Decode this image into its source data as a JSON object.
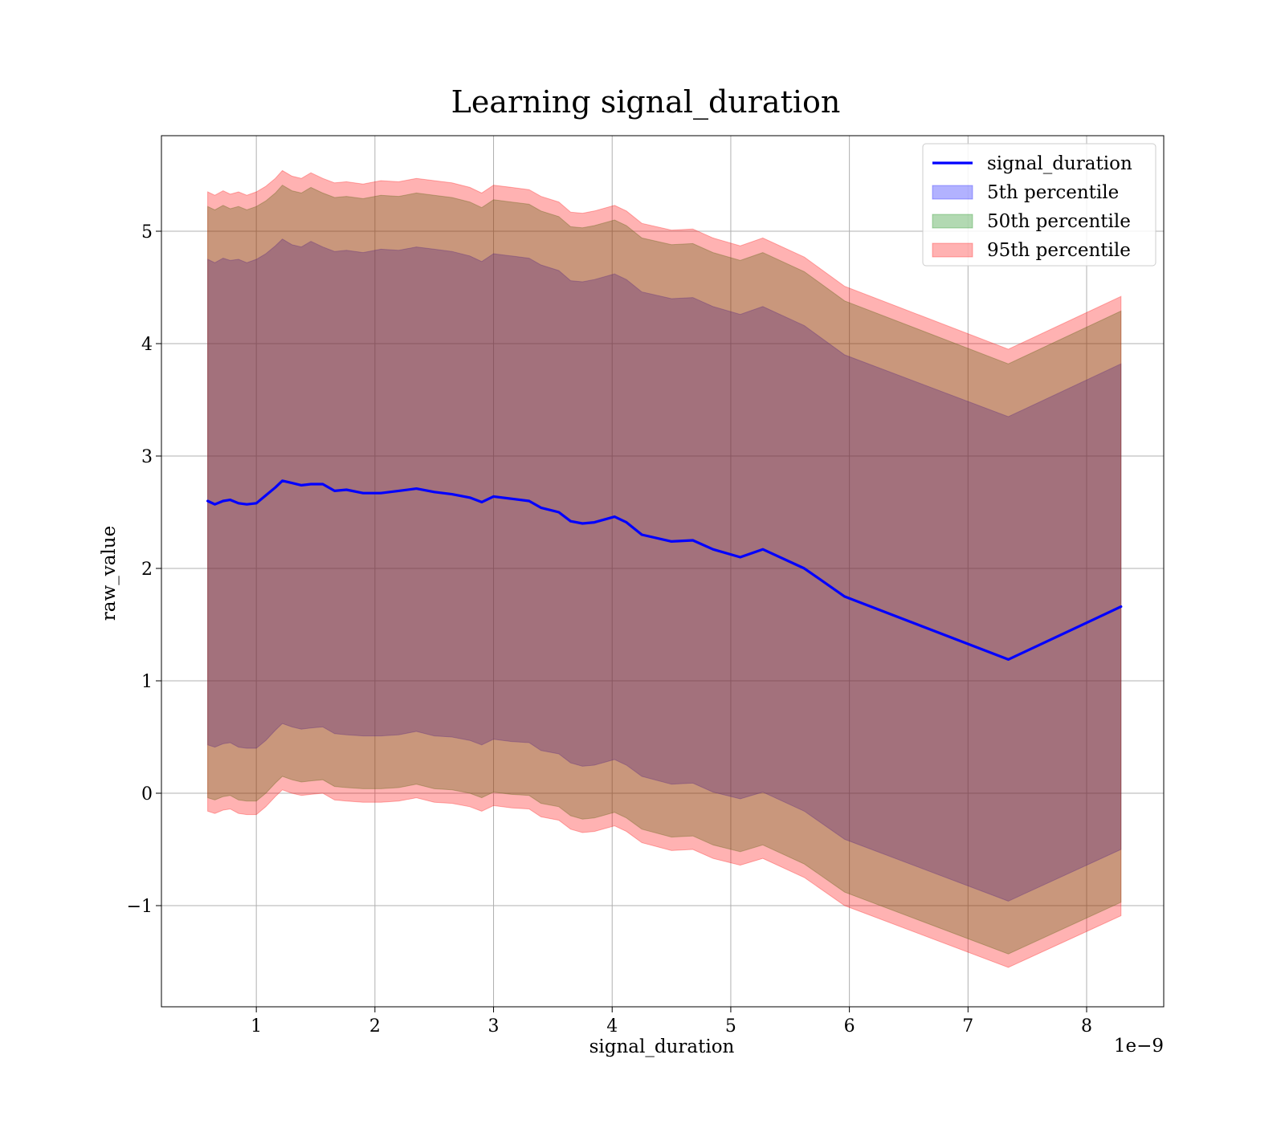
{
  "chart_data": {
    "type": "area",
    "title": "Learning signal_duration",
    "xlabel": "signal_duration",
    "ylabel": "raw_value",
    "x_offset_text": "1e−9",
    "x_scale_note": "x values in units of 1e-9",
    "xlim": [
      0.2,
      8.65
    ],
    "ylim": [
      -1.9,
      5.85
    ],
    "x_ticks": [
      1,
      2,
      3,
      4,
      5,
      6,
      7,
      8
    ],
    "y_ticks": [
      -1,
      0,
      1,
      2,
      3,
      4,
      5
    ],
    "x_tick_labels": [
      "1",
      "2",
      "3",
      "4",
      "5",
      "6",
      "7",
      "8"
    ],
    "y_tick_labels": [
      "−1",
      "0",
      "1",
      "2",
      "3",
      "4",
      "5"
    ],
    "grid": true,
    "legend_position": "top-right",
    "x": [
      0.59,
      0.65,
      0.72,
      0.78,
      0.85,
      0.92,
      1.0,
      1.08,
      1.16,
      1.22,
      1.3,
      1.38,
      1.46,
      1.56,
      1.66,
      1.76,
      1.9,
      2.05,
      2.2,
      2.35,
      2.5,
      2.65,
      2.8,
      2.9,
      3.0,
      3.15,
      3.3,
      3.4,
      3.55,
      3.65,
      3.75,
      3.85,
      4.02,
      4.12,
      4.25,
      4.5,
      4.68,
      4.85,
      5.08,
      5.27,
      5.62,
      5.96,
      7.34,
      8.29
    ],
    "series": [
      {
        "name": "signal_duration",
        "role": "line",
        "color": "#0000ff",
        "values": [
          2.6,
          2.57,
          2.6,
          2.61,
          2.58,
          2.57,
          2.58,
          2.65,
          2.72,
          2.78,
          2.76,
          2.74,
          2.75,
          2.75,
          2.69,
          2.7,
          2.67,
          2.67,
          2.69,
          2.71,
          2.68,
          2.66,
          2.63,
          2.59,
          2.64,
          2.62,
          2.6,
          2.54,
          2.5,
          2.42,
          2.4,
          2.41,
          2.46,
          2.41,
          2.3,
          2.24,
          2.25,
          2.17,
          2.1,
          2.17,
          2.0,
          1.75,
          1.19,
          1.66
        ]
      },
      {
        "name": "5th percentile",
        "role": "band",
        "color": "#0000ff",
        "opacity": 0.3,
        "upper": [
          4.75,
          4.72,
          4.76,
          4.74,
          4.75,
          4.72,
          4.75,
          4.8,
          4.87,
          4.93,
          4.88,
          4.86,
          4.91,
          4.86,
          4.82,
          4.83,
          4.81,
          4.84,
          4.83,
          4.86,
          4.84,
          4.82,
          4.78,
          4.73,
          4.8,
          4.78,
          4.76,
          4.7,
          4.65,
          4.56,
          4.55,
          4.57,
          4.62,
          4.57,
          4.46,
          4.4,
          4.41,
          4.33,
          4.26,
          4.33,
          4.16,
          3.9,
          3.35,
          3.82
        ],
        "lower": [
          0.43,
          0.41,
          0.44,
          0.45,
          0.41,
          0.4,
          0.4,
          0.47,
          0.56,
          0.62,
          0.59,
          0.57,
          0.58,
          0.59,
          0.53,
          0.52,
          0.51,
          0.51,
          0.52,
          0.55,
          0.51,
          0.5,
          0.47,
          0.43,
          0.48,
          0.46,
          0.45,
          0.38,
          0.35,
          0.27,
          0.24,
          0.25,
          0.3,
          0.25,
          0.15,
          0.08,
          0.09,
          0.01,
          -0.05,
          0.01,
          -0.16,
          -0.41,
          -0.96,
          -0.5
        ]
      },
      {
        "name": "50th percentile",
        "role": "band",
        "color": "#008000",
        "opacity": 0.3,
        "upper": [
          5.22,
          5.19,
          5.23,
          5.2,
          5.22,
          5.19,
          5.22,
          5.27,
          5.34,
          5.41,
          5.36,
          5.34,
          5.39,
          5.34,
          5.3,
          5.31,
          5.29,
          5.32,
          5.31,
          5.34,
          5.32,
          5.3,
          5.26,
          5.21,
          5.28,
          5.26,
          5.24,
          5.18,
          5.13,
          5.04,
          5.03,
          5.05,
          5.1,
          5.05,
          4.94,
          4.88,
          4.89,
          4.81,
          4.74,
          4.81,
          4.64,
          4.38,
          3.82,
          4.29
        ],
        "lower": [
          -0.04,
          -0.06,
          -0.03,
          -0.02,
          -0.06,
          -0.07,
          -0.07,
          0.0,
          0.09,
          0.15,
          0.12,
          0.1,
          0.11,
          0.12,
          0.06,
          0.05,
          0.04,
          0.04,
          0.05,
          0.08,
          0.04,
          0.03,
          0.0,
          -0.04,
          0.01,
          -0.01,
          -0.02,
          -0.09,
          -0.12,
          -0.2,
          -0.23,
          -0.22,
          -0.17,
          -0.22,
          -0.32,
          -0.39,
          -0.38,
          -0.46,
          -0.52,
          -0.46,
          -0.63,
          -0.88,
          -1.43,
          -0.97
        ]
      },
      {
        "name": "95th percentile",
        "role": "band",
        "color": "#ff0000",
        "opacity": 0.3,
        "upper": [
          5.35,
          5.32,
          5.36,
          5.33,
          5.35,
          5.32,
          5.35,
          5.4,
          5.47,
          5.54,
          5.49,
          5.47,
          5.52,
          5.47,
          5.43,
          5.44,
          5.42,
          5.45,
          5.44,
          5.47,
          5.45,
          5.43,
          5.39,
          5.34,
          5.41,
          5.39,
          5.37,
          5.31,
          5.26,
          5.17,
          5.16,
          5.18,
          5.23,
          5.18,
          5.07,
          5.01,
          5.02,
          4.94,
          4.87,
          4.94,
          4.77,
          4.51,
          3.95,
          4.42
        ],
        "lower": [
          -0.16,
          -0.18,
          -0.15,
          -0.14,
          -0.18,
          -0.19,
          -0.19,
          -0.12,
          -0.03,
          0.03,
          0.0,
          -0.02,
          -0.01,
          0.0,
          -0.06,
          -0.07,
          -0.08,
          -0.08,
          -0.07,
          -0.04,
          -0.08,
          -0.09,
          -0.12,
          -0.16,
          -0.11,
          -0.13,
          -0.14,
          -0.21,
          -0.24,
          -0.32,
          -0.35,
          -0.34,
          -0.29,
          -0.34,
          -0.44,
          -0.51,
          -0.5,
          -0.58,
          -0.64,
          -0.58,
          -0.75,
          -1.0,
          -1.55,
          -1.09
        ]
      }
    ]
  }
}
